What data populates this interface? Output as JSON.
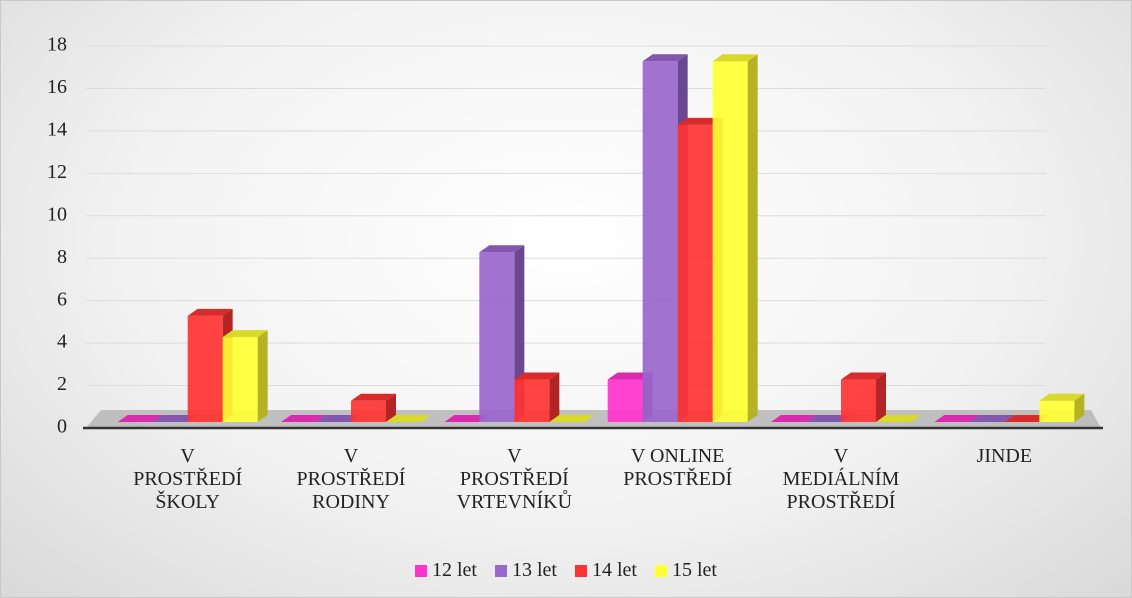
{
  "chart_data": {
    "type": "bar3d",
    "categories": [
      "V\nPROSTŘEDÍ\nŠKOLY",
      "V\nPROSTŘEDÍ\nRODINY",
      "V\nPROSTŘEDÍ\nVRTEVNÍKŮ",
      "V ONLINE\nPROSTŘEDÍ",
      "V\nMEDIÁLNÍM\nPROSTŘEDÍ",
      "JINDE"
    ],
    "series": [
      {
        "name": "12 let",
        "color": "#ff33cc",
        "values": [
          0,
          0,
          0,
          2,
          0,
          0
        ]
      },
      {
        "name": "13 let",
        "color": "#9966cc",
        "values": [
          0,
          0,
          8,
          17,
          0,
          0
        ]
      },
      {
        "name": "14 let",
        "color": "#ff3333",
        "values": [
          5,
          1,
          2,
          14,
          2,
          0
        ]
      },
      {
        "name": "15 let",
        "color": "#ffff33",
        "values": [
          4,
          0,
          0,
          17,
          0,
          1
        ]
      }
    ],
    "ylim": [
      0,
      18
    ],
    "yticks": [
      0,
      2,
      4,
      6,
      8,
      10,
      12,
      14,
      16,
      18
    ],
    "grid": true,
    "legend": "bottom"
  }
}
